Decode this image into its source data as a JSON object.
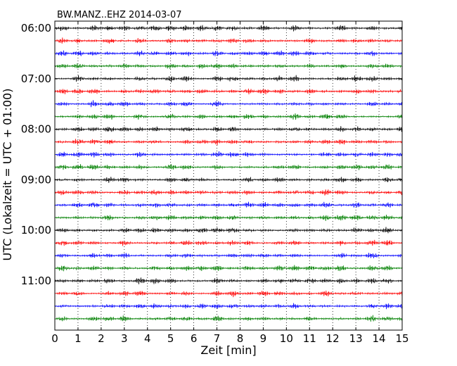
{
  "chart_data": {
    "type": "line",
    "title": "BW.MANZ..EHZ 2014-03-07",
    "xlabel": "Zeit  [min]",
    "ylabel": "UTC (Lokalzeit = UTC + 01:00)",
    "xlim": [
      0,
      15
    ],
    "x_ticks": [
      "0",
      "1",
      "2",
      "3",
      "4",
      "5",
      "6",
      "7",
      "8",
      "9",
      "10",
      "11",
      "12",
      "13",
      "14",
      "15"
    ],
    "x_ticks_values": [
      0,
      1,
      2,
      3,
      4,
      5,
      6,
      7,
      8,
      9,
      10,
      11,
      12,
      13,
      14,
      15
    ],
    "y_tick_labels": [
      "06:00",
      "07:00",
      "08:00",
      "09:00",
      "10:00",
      "11:00"
    ],
    "trace_count": 24,
    "trace_minutes_each": 15,
    "trace_colors": [
      "#000000",
      "#ff0000",
      "#0000ff",
      "#008000"
    ],
    "grid": "vertical dotted lines at each minute",
    "legend": "none",
    "traces": [
      {
        "start": "06:00",
        "color": "#000000"
      },
      {
        "start": "06:15",
        "color": "#ff0000"
      },
      {
        "start": "06:30",
        "color": "#0000ff"
      },
      {
        "start": "06:45",
        "color": "#008000"
      },
      {
        "start": "07:00",
        "color": "#000000"
      },
      {
        "start": "07:15",
        "color": "#ff0000"
      },
      {
        "start": "07:30",
        "color": "#0000ff"
      },
      {
        "start": "07:45",
        "color": "#008000"
      },
      {
        "start": "08:00",
        "color": "#000000"
      },
      {
        "start": "08:15",
        "color": "#ff0000"
      },
      {
        "start": "08:30",
        "color": "#0000ff"
      },
      {
        "start": "08:45",
        "color": "#008000"
      },
      {
        "start": "09:00",
        "color": "#000000"
      },
      {
        "start": "09:15",
        "color": "#ff0000"
      },
      {
        "start": "09:30",
        "color": "#0000ff"
      },
      {
        "start": "09:45",
        "color": "#008000"
      },
      {
        "start": "10:00",
        "color": "#000000"
      },
      {
        "start": "10:15",
        "color": "#ff0000"
      },
      {
        "start": "10:30",
        "color": "#0000ff"
      },
      {
        "start": "10:45",
        "color": "#008000"
      },
      {
        "start": "11:00",
        "color": "#000000"
      },
      {
        "start": "11:15",
        "color": "#ff0000"
      },
      {
        "start": "11:30",
        "color": "#0000ff"
      },
      {
        "start": "11:45",
        "color": "#008000"
      }
    ]
  }
}
